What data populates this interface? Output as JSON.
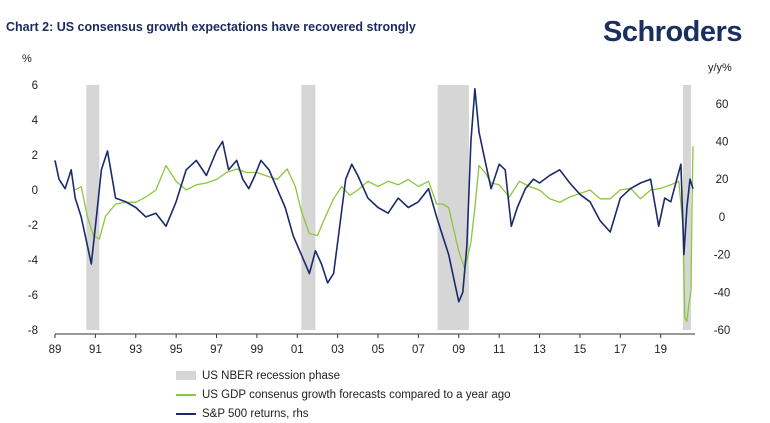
{
  "header": {
    "title": "Chart 2: US consensus growth expectations have recovered strongly",
    "brand": "Schroders"
  },
  "chart_data": {
    "type": "line",
    "title": "Chart 2: US consensus growth expectations have recovered strongly",
    "left_axis_unit": "%",
    "right_axis_unit": "y/y%",
    "x_range": [
      1989,
      2020.7
    ],
    "y_left_range": [
      -8,
      6
    ],
    "y_right_range": [
      -60,
      70
    ],
    "x_ticks": [
      "89",
      "91",
      "93",
      "95",
      "97",
      "99",
      "01",
      "03",
      "05",
      "07",
      "09",
      "11",
      "13",
      "15",
      "17",
      "19"
    ],
    "y_left_ticks": [
      "6",
      "4",
      "2",
      "0",
      "-2",
      "-4",
      "-6",
      "-8"
    ],
    "y_right_ticks": [
      "60",
      "40",
      "20",
      "0",
      "-20",
      "-40",
      "-60"
    ],
    "grid": false,
    "legend_placement": "bottom",
    "recessions": [
      [
        1990.55,
        1991.2
      ],
      [
        2001.2,
        2001.9
      ],
      [
        2007.95,
        2009.5
      ],
      [
        2020.1,
        2020.5
      ]
    ],
    "legend": [
      {
        "label": "US NBER recession phase",
        "kind": "box",
        "color": "#d6d6d6"
      },
      {
        "label": "US GDP consenus growth forecasts compared to a year ago",
        "kind": "line",
        "color": "#8cc63f"
      },
      {
        "label": "S&P 500 returns, rhs",
        "kind": "line",
        "color": "#1b2a6b"
      }
    ],
    "series": [
      {
        "name": "US GDP consenus growth forecasts compared to a year ago",
        "axis": "left",
        "color": "#8cc63f",
        "x": [
          1990.0,
          1990.3,
          1990.6,
          1990.9,
          1991.2,
          1991.5,
          1992.0,
          1992.5,
          1993.0,
          1993.5,
          1994.0,
          1994.5,
          1995.0,
          1995.5,
          1996.0,
          1996.5,
          1997.0,
          1997.5,
          1998.0,
          1998.5,
          1999.0,
          1999.5,
          2000.0,
          2000.5,
          2000.9,
          2001.2,
          2001.6,
          2002.0,
          2002.4,
          2002.8,
          2003.2,
          2003.6,
          2004.0,
          2004.5,
          2005.0,
          2005.5,
          2006.0,
          2006.5,
          2007.0,
          2007.5,
          2007.9,
          2008.2,
          2008.5,
          2008.8,
          2009.0,
          2009.3,
          2009.6,
          2009.8,
          2010.0,
          2010.3,
          2010.6,
          2011.0,
          2011.5,
          2012.0,
          2012.5,
          2013.0,
          2013.5,
          2014.0,
          2014.5,
          2015.0,
          2015.5,
          2016.0,
          2016.5,
          2017.0,
          2017.5,
          2018.0,
          2018.5,
          2019.0,
          2019.5,
          2019.9,
          2020.1,
          2020.2,
          2020.3,
          2020.4,
          2020.5,
          2020.55,
          2020.6
        ],
        "values": [
          0.0,
          0.2,
          -1.5,
          -2.6,
          -2.8,
          -1.5,
          -0.8,
          -0.7,
          -0.7,
          -0.4,
          0.0,
          1.4,
          0.5,
          0.0,
          0.3,
          0.4,
          0.6,
          1.0,
          1.2,
          1.0,
          1.0,
          0.8,
          0.6,
          1.2,
          0.2,
          -1.2,
          -2.5,
          -2.6,
          -1.5,
          -0.5,
          0.2,
          -0.3,
          0.0,
          0.5,
          0.2,
          0.5,
          0.3,
          0.6,
          0.2,
          0.5,
          -0.8,
          -0.8,
          -1.0,
          -2.5,
          -3.5,
          -4.5,
          -3.0,
          -1.0,
          1.4,
          1.0,
          0.4,
          0.3,
          -0.4,
          0.5,
          0.2,
          0.0,
          -0.5,
          -0.7,
          -0.4,
          -0.2,
          0.0,
          -0.5,
          -0.5,
          0.0,
          0.1,
          -0.5,
          0.0,
          0.1,
          0.3,
          0.5,
          -2.0,
          -7.3,
          -7.5,
          -6.5,
          -5.8,
          -1.0,
          2.5
        ]
      },
      {
        "name": "S&P 500 returns, rhs",
        "axis": "right",
        "color": "#1b2a6b",
        "x": [
          1989.0,
          1989.2,
          1989.5,
          1989.8,
          1990.0,
          1990.3,
          1990.6,
          1990.8,
          1991.0,
          1991.3,
          1991.6,
          1992.0,
          1992.5,
          1993.0,
          1993.5,
          1994.0,
          1994.5,
          1995.0,
          1995.5,
          1996.0,
          1996.5,
          1997.0,
          1997.3,
          1997.6,
          1998.0,
          1998.3,
          1998.6,
          1998.9,
          1999.2,
          1999.6,
          2000.0,
          2000.4,
          2000.8,
          2001.2,
          2001.6,
          2001.9,
          2002.2,
          2002.5,
          2002.8,
          2003.1,
          2003.4,
          2003.7,
          2004.0,
          2004.5,
          2005.0,
          2005.5,
          2006.0,
          2006.5,
          2007.0,
          2007.5,
          2007.9,
          2008.2,
          2008.5,
          2008.8,
          2009.0,
          2009.2,
          2009.4,
          2009.6,
          2009.8,
          2010.0,
          2010.3,
          2010.6,
          2011.0,
          2011.3,
          2011.6,
          2011.9,
          2012.3,
          2012.7,
          2013.0,
          2013.5,
          2014.0,
          2014.5,
          2015.0,
          2015.5,
          2016.0,
          2016.5,
          2017.0,
          2017.5,
          2018.0,
          2018.5,
          2018.9,
          2019.2,
          2019.5,
          2019.8,
          2020.0,
          2020.15,
          2020.3,
          2020.45,
          2020.6
        ],
        "values": [
          30,
          20,
          15,
          25,
          10,
          0,
          -15,
          -25,
          -5,
          25,
          35,
          10,
          8,
          5,
          0,
          2,
          -5,
          8,
          25,
          30,
          22,
          35,
          40,
          25,
          30,
          20,
          15,
          22,
          30,
          25,
          15,
          5,
          -10,
          -20,
          -30,
          -18,
          -25,
          -35,
          -30,
          -5,
          20,
          28,
          22,
          10,
          5,
          2,
          10,
          5,
          8,
          15,
          0,
          -10,
          -20,
          -35,
          -45,
          -40,
          -15,
          40,
          68,
          45,
          30,
          15,
          28,
          25,
          -5,
          5,
          15,
          20,
          18,
          22,
          25,
          18,
          12,
          8,
          -2,
          -8,
          10,
          15,
          18,
          20,
          -5,
          10,
          8,
          20,
          28,
          -20,
          5,
          20,
          15
        ]
      }
    ]
  }
}
